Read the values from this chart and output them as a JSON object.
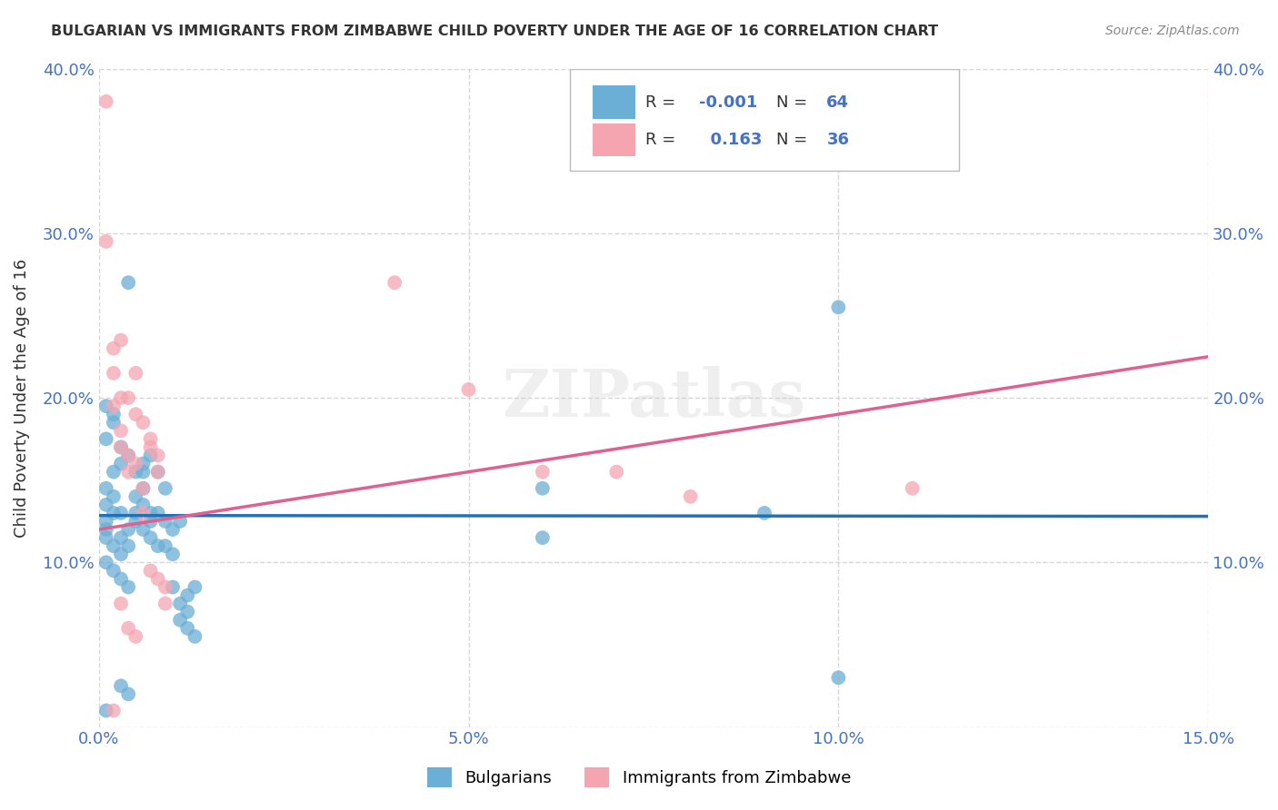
{
  "title": "BULGARIAN VS IMMIGRANTS FROM ZIMBABWE CHILD POVERTY UNDER THE AGE OF 16 CORRELATION CHART",
  "source": "Source: ZipAtlas.com",
  "ylabel": "Child Poverty Under the Age of 16",
  "xlim": [
    0.0,
    0.15
  ],
  "ylim": [
    0.0,
    0.4
  ],
  "legend_r_blue": "-0.001",
  "legend_n_blue": "64",
  "legend_r_pink": "0.163",
  "legend_n_pink": "36",
  "blue_color": "#6baed6",
  "pink_color": "#f4a5b0",
  "blue_line_color": "#2171b5",
  "pink_line_color": "#e06090",
  "blue_scatter": [
    [
      0.001,
      0.135
    ],
    [
      0.002,
      0.13
    ],
    [
      0.001,
      0.125
    ],
    [
      0.003,
      0.16
    ],
    [
      0.002,
      0.155
    ],
    [
      0.001,
      0.145
    ],
    [
      0.004,
      0.165
    ],
    [
      0.003,
      0.17
    ],
    [
      0.002,
      0.14
    ],
    [
      0.001,
      0.12
    ],
    [
      0.001,
      0.115
    ],
    [
      0.002,
      0.11
    ],
    [
      0.003,
      0.105
    ],
    [
      0.001,
      0.1
    ],
    [
      0.002,
      0.095
    ],
    [
      0.003,
      0.09
    ],
    [
      0.004,
      0.085
    ],
    [
      0.005,
      0.125
    ],
    [
      0.004,
      0.12
    ],
    [
      0.003,
      0.115
    ],
    [
      0.005,
      0.13
    ],
    [
      0.004,
      0.11
    ],
    [
      0.006,
      0.155
    ],
    [
      0.005,
      0.14
    ],
    [
      0.006,
      0.135
    ],
    [
      0.007,
      0.125
    ],
    [
      0.006,
      0.12
    ],
    [
      0.007,
      0.115
    ],
    [
      0.008,
      0.11
    ],
    [
      0.007,
      0.165
    ],
    [
      0.008,
      0.155
    ],
    [
      0.009,
      0.145
    ],
    [
      0.008,
      0.13
    ],
    [
      0.009,
      0.125
    ],
    [
      0.01,
      0.12
    ],
    [
      0.009,
      0.11
    ],
    [
      0.01,
      0.105
    ],
    [
      0.011,
      0.125
    ],
    [
      0.01,
      0.085
    ],
    [
      0.011,
      0.075
    ],
    [
      0.012,
      0.08
    ],
    [
      0.011,
      0.065
    ],
    [
      0.012,
      0.07
    ],
    [
      0.013,
      0.085
    ],
    [
      0.012,
      0.06
    ],
    [
      0.013,
      0.055
    ],
    [
      0.001,
      0.175
    ],
    [
      0.002,
      0.185
    ],
    [
      0.002,
      0.19
    ],
    [
      0.001,
      0.195
    ],
    [
      0.004,
      0.27
    ],
    [
      0.003,
      0.13
    ],
    [
      0.06,
      0.145
    ],
    [
      0.06,
      0.115
    ],
    [
      0.09,
      0.13
    ],
    [
      0.1,
      0.255
    ],
    [
      0.001,
      0.01
    ],
    [
      0.003,
      0.025
    ],
    [
      0.004,
      0.02
    ],
    [
      0.1,
      0.03
    ],
    [
      0.005,
      0.155
    ],
    [
      0.006,
      0.145
    ],
    [
      0.006,
      0.16
    ],
    [
      0.007,
      0.13
    ]
  ],
  "pink_scatter": [
    [
      0.001,
      0.38
    ],
    [
      0.001,
      0.295
    ],
    [
      0.002,
      0.23
    ],
    [
      0.003,
      0.235
    ],
    [
      0.002,
      0.215
    ],
    [
      0.003,
      0.2
    ],
    [
      0.002,
      0.195
    ],
    [
      0.003,
      0.18
    ],
    [
      0.003,
      0.17
    ],
    [
      0.004,
      0.165
    ],
    [
      0.004,
      0.155
    ],
    [
      0.005,
      0.215
    ],
    [
      0.004,
      0.2
    ],
    [
      0.005,
      0.19
    ],
    [
      0.006,
      0.185
    ],
    [
      0.005,
      0.16
    ],
    [
      0.006,
      0.145
    ],
    [
      0.006,
      0.13
    ],
    [
      0.007,
      0.175
    ],
    [
      0.007,
      0.17
    ],
    [
      0.008,
      0.165
    ],
    [
      0.008,
      0.155
    ],
    [
      0.007,
      0.095
    ],
    [
      0.008,
      0.09
    ],
    [
      0.009,
      0.085
    ],
    [
      0.009,
      0.075
    ],
    [
      0.04,
      0.27
    ],
    [
      0.05,
      0.205
    ],
    [
      0.06,
      0.155
    ],
    [
      0.07,
      0.155
    ],
    [
      0.08,
      0.14
    ],
    [
      0.003,
      0.075
    ],
    [
      0.004,
      0.06
    ],
    [
      0.005,
      0.055
    ],
    [
      0.11,
      0.145
    ],
    [
      0.002,
      0.01
    ]
  ],
  "blue_trend_x": [
    0.0,
    0.15
  ],
  "blue_trend_y": [
    0.1285,
    0.128
  ],
  "pink_trend_x": [
    0.0,
    0.15
  ],
  "pink_trend_y": [
    0.12,
    0.225
  ],
  "background_color": "#ffffff",
  "grid_color": "#cccccc",
  "tick_color": "#4472c4",
  "label_color": "#333333",
  "source_color": "#888888"
}
